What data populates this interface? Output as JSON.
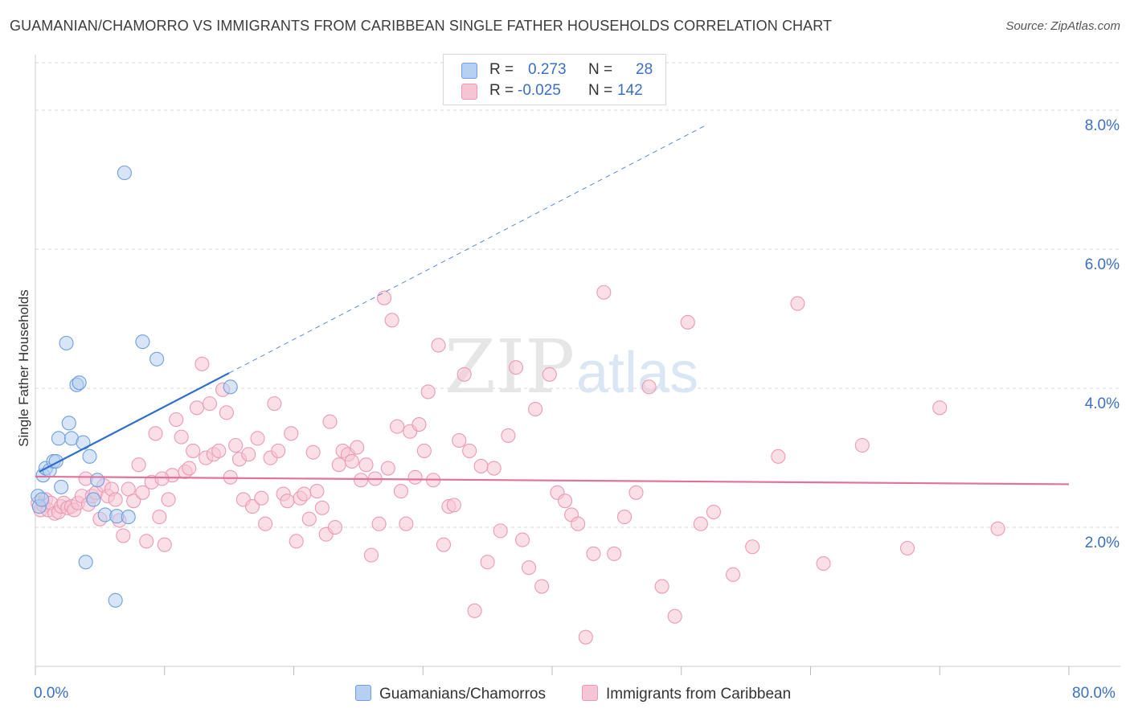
{
  "header": {
    "title": "GUAMANIAN/CHAMORRO VS IMMIGRANTS FROM CARIBBEAN SINGLE FATHER HOUSEHOLDS CORRELATION CHART",
    "source": "Source: ZipAtlas.com"
  },
  "watermark": {
    "zip": "ZIP",
    "atlas": "atlas"
  },
  "legend": {
    "series1": {
      "r_label": "R =",
      "r_value": "0.273",
      "n_label": "N =",
      "n_value": "28"
    },
    "series2": {
      "r_label": "R =",
      "r_value": "-0.025",
      "n_label": "N =",
      "n_value": "142"
    }
  },
  "bottom_legend": {
    "series1": "Guamanians/Chamorros",
    "series2": "Immigrants from Caribbean"
  },
  "colors": {
    "blue_fill": "#b7cff0",
    "blue_stroke": "#6f9ee0",
    "blue_line": "#2f6fcc",
    "pink_fill": "#f6c5d4",
    "pink_stroke": "#eb9ab5",
    "pink_line": "#e2729a",
    "tick_text": "#3b6fc4",
    "grid": "#d9d9d9"
  },
  "chart_data": {
    "type": "scatter",
    "title": "GUAMANIAN/CHAMORRO VS IMMIGRANTS FROM CARIBBEAN SINGLE FATHER HOUSEHOLDS CORRELATION CHART",
    "xlabel": "",
    "ylabel": "Single Father Households",
    "xlim": [
      0,
      80
    ],
    "ylim": [
      0,
      8.8
    ],
    "x_tick_labels": [
      "0.0%",
      "80.0%"
    ],
    "y_ticks": [
      {
        "value": 2,
        "label": "2.0%"
      },
      {
        "value": 4,
        "label": "4.0%"
      },
      {
        "value": 6,
        "label": "6.0%"
      },
      {
        "value": 8,
        "label": "8.0%"
      }
    ],
    "grid": true,
    "series": [
      {
        "name": "Guamanians/Chamorros",
        "color": "blue",
        "trend": {
          "x0": 0.3,
          "y0": 2.8,
          "x1": 15,
          "y1": 4.22,
          "dashed_to_x": 52
        },
        "points": [
          [
            0.2,
            2.45
          ],
          [
            0.3,
            2.3
          ],
          [
            0.5,
            2.4
          ],
          [
            0.6,
            2.75
          ],
          [
            0.8,
            2.85
          ],
          [
            1.1,
            2.82
          ],
          [
            1.4,
            2.95
          ],
          [
            1.6,
            2.95
          ],
          [
            1.8,
            3.28
          ],
          [
            2.0,
            2.58
          ],
          [
            2.4,
            4.65
          ],
          [
            2.6,
            3.5
          ],
          [
            2.8,
            3.28
          ],
          [
            3.2,
            4.05
          ],
          [
            3.4,
            4.08
          ],
          [
            3.7,
            3.22
          ],
          [
            4.2,
            3.02
          ],
          [
            4.5,
            2.4
          ],
          [
            4.8,
            2.68
          ],
          [
            5.4,
            2.18
          ],
          [
            6.3,
            2.16
          ],
          [
            7.2,
            2.15
          ],
          [
            3.9,
            1.5
          ],
          [
            6.2,
            0.95
          ],
          [
            6.9,
            7.1
          ],
          [
            8.3,
            4.67
          ],
          [
            9.4,
            4.42
          ],
          [
            15.1,
            4.02
          ]
        ]
      },
      {
        "name": "Immigrants from Caribbean",
        "color": "pink",
        "trend": {
          "x0": 0,
          "y0": 2.73,
          "x1": 80,
          "y1": 2.62
        },
        "points": [
          [
            0.2,
            2.35
          ],
          [
            0.4,
            2.25
          ],
          [
            0.6,
            2.32
          ],
          [
            0.8,
            2.4
          ],
          [
            1.0,
            2.25
          ],
          [
            1.2,
            2.35
          ],
          [
            1.5,
            2.2
          ],
          [
            1.8,
            2.22
          ],
          [
            2.0,
            2.3
          ],
          [
            2.2,
            2.35
          ],
          [
            2.5,
            2.28
          ],
          [
            2.8,
            2.3
          ],
          [
            3.0,
            2.25
          ],
          [
            3.3,
            2.35
          ],
          [
            3.6,
            2.45
          ],
          [
            3.9,
            2.7
          ],
          [
            4.1,
            2.33
          ],
          [
            4.4,
            2.45
          ],
          [
            4.7,
            2.5
          ],
          [
            5.0,
            2.12
          ],
          [
            5.3,
            2.6
          ],
          [
            5.6,
            2.45
          ],
          [
            5.9,
            2.55
          ],
          [
            6.2,
            2.4
          ],
          [
            6.5,
            2.1
          ],
          [
            6.8,
            1.88
          ],
          [
            7.2,
            2.55
          ],
          [
            7.6,
            2.38
          ],
          [
            8.0,
            2.9
          ],
          [
            8.3,
            2.5
          ],
          [
            8.6,
            1.8
          ],
          [
            9.0,
            2.65
          ],
          [
            9.3,
            3.35
          ],
          [
            9.6,
            2.15
          ],
          [
            10.0,
            1.75
          ],
          [
            10.3,
            2.4
          ],
          [
            10.6,
            2.75
          ],
          [
            10.9,
            3.55
          ],
          [
            11.3,
            3.3
          ],
          [
            11.6,
            2.8
          ],
          [
            11.9,
            2.85
          ],
          [
            12.2,
            3.1
          ],
          [
            12.5,
            3.72
          ],
          [
            12.9,
            4.35
          ],
          [
            13.2,
            3.0
          ],
          [
            13.5,
            3.78
          ],
          [
            13.8,
            3.05
          ],
          [
            14.2,
            3.1
          ],
          [
            14.5,
            3.98
          ],
          [
            14.8,
            3.65
          ],
          [
            15.1,
            2.72
          ],
          [
            15.5,
            3.18
          ],
          [
            15.8,
            2.98
          ],
          [
            16.1,
            2.4
          ],
          [
            16.5,
            3.05
          ],
          [
            16.8,
            2.3
          ],
          [
            17.2,
            3.28
          ],
          [
            17.5,
            2.42
          ],
          [
            17.8,
            2.05
          ],
          [
            18.2,
            3.0
          ],
          [
            18.5,
            3.78
          ],
          [
            18.8,
            3.1
          ],
          [
            19.2,
            2.48
          ],
          [
            19.5,
            2.38
          ],
          [
            19.8,
            3.35
          ],
          [
            20.2,
            1.8
          ],
          [
            20.5,
            2.42
          ],
          [
            20.8,
            2.48
          ],
          [
            21.2,
            2.12
          ],
          [
            21.5,
            3.08
          ],
          [
            21.8,
            2.52
          ],
          [
            22.2,
            2.28
          ],
          [
            22.5,
            1.9
          ],
          [
            22.8,
            3.52
          ],
          [
            23.2,
            2.0
          ],
          [
            23.5,
            2.9
          ],
          [
            23.8,
            3.1
          ],
          [
            24.2,
            3.05
          ],
          [
            24.5,
            2.95
          ],
          [
            24.9,
            3.15
          ],
          [
            25.2,
            2.68
          ],
          [
            25.6,
            2.9
          ],
          [
            26.0,
            1.6
          ],
          [
            26.3,
            2.7
          ],
          [
            26.6,
            2.05
          ],
          [
            27.0,
            5.3
          ],
          [
            27.3,
            2.85
          ],
          [
            27.6,
            4.98
          ],
          [
            28.0,
            3.45
          ],
          [
            28.3,
            2.52
          ],
          [
            28.7,
            2.05
          ],
          [
            29.0,
            3.38
          ],
          [
            29.4,
            2.72
          ],
          [
            29.7,
            3.48
          ],
          [
            30.1,
            3.1
          ],
          [
            30.4,
            3.95
          ],
          [
            30.8,
            2.68
          ],
          [
            31.2,
            4.62
          ],
          [
            31.6,
            1.75
          ],
          [
            32.0,
            2.3
          ],
          [
            32.4,
            2.32
          ],
          [
            32.8,
            3.25
          ],
          [
            33.2,
            4.2
          ],
          [
            33.6,
            3.1
          ],
          [
            34.0,
            0.8
          ],
          [
            34.5,
            2.88
          ],
          [
            35.0,
            1.5
          ],
          [
            35.5,
            2.85
          ],
          [
            36.0,
            1.95
          ],
          [
            36.6,
            3.32
          ],
          [
            37.2,
            4.3
          ],
          [
            37.7,
            1.82
          ],
          [
            38.2,
            1.42
          ],
          [
            38.7,
            3.7
          ],
          [
            39.2,
            1.15
          ],
          [
            39.8,
            4.2
          ],
          [
            40.4,
            2.5
          ],
          [
            41.0,
            2.38
          ],
          [
            41.5,
            2.18
          ],
          [
            42.0,
            2.05
          ],
          [
            42.6,
            0.42
          ],
          [
            43.2,
            1.62
          ],
          [
            44.0,
            5.38
          ],
          [
            44.8,
            1.62
          ],
          [
            45.6,
            2.15
          ],
          [
            46.5,
            2.5
          ],
          [
            47.5,
            4.02
          ],
          [
            48.5,
            1.15
          ],
          [
            49.5,
            0.72
          ],
          [
            50.5,
            4.95
          ],
          [
            51.5,
            2.05
          ],
          [
            52.5,
            2.22
          ],
          [
            54.0,
            1.32
          ],
          [
            55.5,
            1.72
          ],
          [
            57.5,
            3.02
          ],
          [
            59.0,
            5.22
          ],
          [
            61.0,
            1.48
          ],
          [
            64.0,
            3.18
          ],
          [
            67.5,
            1.7
          ],
          [
            70.0,
            3.72
          ],
          [
            74.5,
            1.98
          ],
          [
            9.8,
            2.7
          ]
        ]
      }
    ]
  }
}
